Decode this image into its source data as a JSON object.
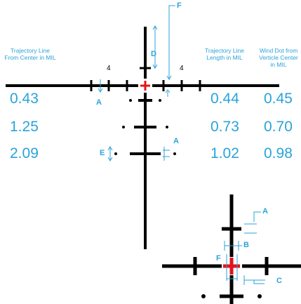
{
  "colors": {
    "accent": "#2aa3d9",
    "reticle": "#000000",
    "center": "#e0141e"
  },
  "headers": {
    "left": "Trajectory Line From Center in MIL",
    "middle": "Trajectory Line Length in MIL",
    "right": "Wind Dot from Verticle Center in MIL"
  },
  "subtension_labels": {
    "left_four": "4",
    "right_four": "4"
  },
  "rows": [
    {
      "from_center": "0.43",
      "line_length": "0.44",
      "wind_dot": "0.45"
    },
    {
      "from_center": "1.25",
      "line_length": "0.73",
      "wind_dot": "0.70"
    },
    {
      "from_center": "2.09",
      "line_length": "1.02",
      "wind_dot": "0.98"
    }
  ],
  "dimension_labels": {
    "f_top": "F",
    "d": "D",
    "a_left": "A",
    "e": "E",
    "a_right": "A",
    "a_inset": "A",
    "b_inset": "B",
    "f_inset": "F",
    "c_inset": "C"
  }
}
